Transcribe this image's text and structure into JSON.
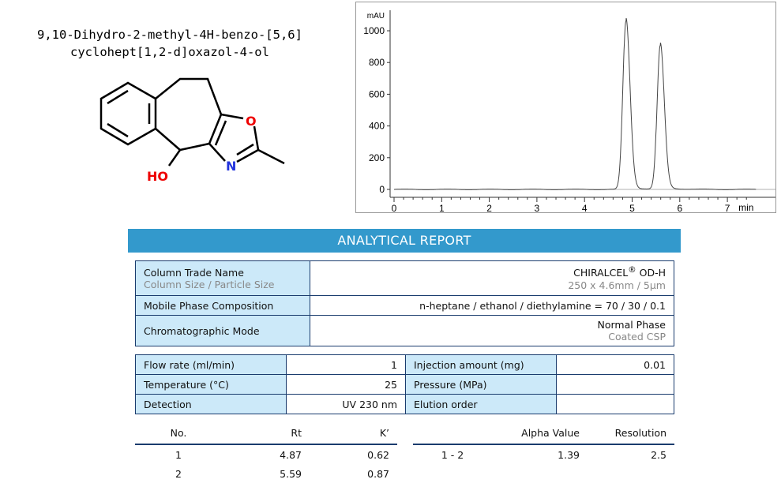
{
  "compound": {
    "line1": "9,10-Dihydro-2-methyl-4H-benzo-[5,6]",
    "line2": "cyclohept[1,2-d]oxazol-4-ol",
    "atoms": {
      "o_ring": "O",
      "n_ring": "N",
      "hydroxyl": "HO"
    }
  },
  "chart_data": {
    "type": "line",
    "ylabel": "mAU",
    "xlabel": "min",
    "xlim": [
      0,
      7.6
    ],
    "ylim": [
      -50,
      1100
    ],
    "xticks": [
      0,
      1,
      2,
      3,
      4,
      5,
      6,
      7
    ],
    "yticks": [
      0,
      200,
      400,
      600,
      800,
      1000
    ],
    "grid": false,
    "peaks": [
      {
        "rt": 4.87,
        "height": 1060
      },
      {
        "rt": 5.59,
        "height": 905
      }
    ]
  },
  "banner": "ANALYTICAL REPORT",
  "column": {
    "trade_label": "Column Trade Name",
    "size_label": "Column Size / Particle Size",
    "trade_value": "CHIRALCEL",
    "trade_reg": "®",
    "trade_suffix": " OD-H",
    "size_value": "250 x 4.6mm / 5µm",
    "mobile_label": "Mobile Phase Composition",
    "mobile_value": "n-heptane / ethanol / diethylamine = 70 / 30 / 0.1",
    "mode_label": "Chromatographic Mode",
    "mode_value": "Normal Phase",
    "mode_sub": "Coated CSP"
  },
  "conditions": {
    "flow_label": "Flow rate (ml/min)",
    "flow": "1",
    "inj_label": "Injection amount (mg)",
    "inj": "0.01",
    "temp_label": "Temperature (°C)",
    "temp": "25",
    "press_label": "Pressure (MPa)",
    "press": "",
    "det_label": "Detection",
    "det": "UV 230 nm",
    "elution_label": "Elution order",
    "elution": ""
  },
  "results": {
    "headers": [
      "No.",
      "Rt",
      "K’"
    ],
    "rows": [
      [
        "1",
        "4.87",
        "0.62"
      ],
      [
        "2",
        "5.59",
        "0.87"
      ]
    ],
    "sep_headers": [
      "",
      "Alpha Value",
      "Resolution"
    ],
    "sep_rows": [
      [
        "1 - 2",
        "1.39",
        "2.5"
      ]
    ]
  }
}
